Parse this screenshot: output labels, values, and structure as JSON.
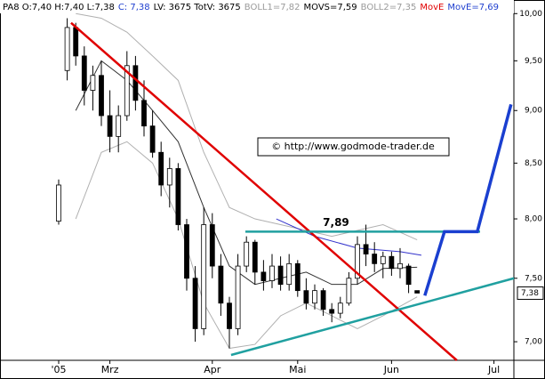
{
  "chart_data": {
    "type": "candlestick",
    "header": [
      {
        "text": "PA8 O:7,40 H:7,40 L:7,38",
        "color": "#000000"
      },
      {
        "text": "C: 7,38",
        "color": "#1f3fcf"
      },
      {
        "text": "LV: 3675 TotV: 3675",
        "color": "#000000"
      },
      {
        "text": "BOLL1=7,82",
        "color": "#9a9a9a"
      },
      {
        "text": "MOVS=7,59",
        "color": "#000000"
      },
      {
        "text": "BOLL2=7,35",
        "color": "#9a9a9a"
      },
      {
        "text": "MovE",
        "color": "#e00000"
      },
      {
        "text": "MovE=7,69",
        "color": "#1f3fcf"
      }
    ],
    "copyright": "© http://www.godmode-trader.de",
    "annotation": {
      "text": "7,89",
      "x": 65,
      "y": 7.89
    },
    "last_price": {
      "value": 7.38,
      "label": "7,38"
    },
    "log_scale": true,
    "ylim": [
      6.86,
      10.1
    ],
    "yticks": [
      {
        "value": 7,
        "label": "7,00"
      },
      {
        "value": 7.5,
        "label": "7,50"
      },
      {
        "value": 8,
        "label": "8,00"
      },
      {
        "value": 8.5,
        "label": "8,50"
      },
      {
        "value": 9,
        "label": "9,00"
      },
      {
        "value": 9.5,
        "label": "9,50"
      },
      {
        "value": 10,
        "label": "10,00"
      }
    ],
    "xlim": [
      -13.75,
      106.67
    ],
    "xticks": [
      {
        "value": 0,
        "label": "'05"
      },
      {
        "value": 12,
        "label": "Mrz"
      },
      {
        "value": 36,
        "label": "Apr"
      },
      {
        "value": 56,
        "label": "Mai"
      },
      {
        "value": 78,
        "label": "Jun"
      },
      {
        "value": 102,
        "label": "Jul"
      }
    ],
    "candles": {
      "x": [
        0,
        2,
        4,
        6,
        8,
        10,
        12,
        14,
        16,
        18,
        20,
        22,
        24,
        26,
        28,
        30,
        32,
        34,
        36,
        38,
        40,
        42,
        44,
        46,
        48,
        50,
        52,
        54,
        56,
        58,
        60,
        62,
        64,
        66,
        68,
        70,
        72,
        74,
        76,
        78,
        80,
        82,
        84
      ],
      "open": [
        7.98,
        9.4,
        9.85,
        9.55,
        9.2,
        9.35,
        8.95,
        8.75,
        8.95,
        9.45,
        9.1,
        8.85,
        8.6,
        8.3,
        8.45,
        7.95,
        7.5,
        7.1,
        7.95,
        7.6,
        7.3,
        7.1,
        7.6,
        7.8,
        7.55,
        7.48,
        7.6,
        7.45,
        7.62,
        7.4,
        7.3,
        7.4,
        7.25,
        7.22,
        7.3,
        7.5,
        7.78,
        7.7,
        7.62,
        7.68,
        7.58,
        7.6,
        7.4
      ],
      "high": [
        8.35,
        9.95,
        9.9,
        9.65,
        9.45,
        9.5,
        9.2,
        9.05,
        9.6,
        9.55,
        9.3,
        9.0,
        8.7,
        8.55,
        8.5,
        8.0,
        7.6,
        8.1,
        8.05,
        7.7,
        7.35,
        7.7,
        7.85,
        7.82,
        7.65,
        7.7,
        7.68,
        7.7,
        7.65,
        7.5,
        7.45,
        7.42,
        7.3,
        7.35,
        7.55,
        7.85,
        7.95,
        7.8,
        7.72,
        7.72,
        7.75,
        7.62,
        7.4
      ],
      "low": [
        7.95,
        9.3,
        9.45,
        9.05,
        9.0,
        8.85,
        8.6,
        8.6,
        8.9,
        9.0,
        8.75,
        8.55,
        8.2,
        8.1,
        7.9,
        7.4,
        7.0,
        7.05,
        7.5,
        7.2,
        6.95,
        7.05,
        7.55,
        7.45,
        7.4,
        7.42,
        7.4,
        7.4,
        7.35,
        7.25,
        7.25,
        7.2,
        7.15,
        7.18,
        7.28,
        7.45,
        7.6,
        7.55,
        7.5,
        7.52,
        7.5,
        7.38,
        7.38
      ],
      "close": [
        8.3,
        9.85,
        9.55,
        9.2,
        9.35,
        8.95,
        8.75,
        8.95,
        9.45,
        9.1,
        8.85,
        8.6,
        8.3,
        8.45,
        7.95,
        7.5,
        7.1,
        7.95,
        7.6,
        7.3,
        7.1,
        7.6,
        7.8,
        7.55,
        7.48,
        7.6,
        7.45,
        7.62,
        7.4,
        7.3,
        7.4,
        7.25,
        7.22,
        7.3,
        7.5,
        7.78,
        7.7,
        7.62,
        7.68,
        7.58,
        7.62,
        7.45,
        7.38
      ]
    },
    "series": [
      {
        "name": "BOLL1",
        "color": "#b0b0b0",
        "width": 1,
        "x": [
          4,
          10,
          16,
          22,
          28,
          34,
          40,
          46,
          52,
          58,
          64,
          70,
          76,
          84
        ],
        "values": [
          10.0,
          9.95,
          9.8,
          9.55,
          9.3,
          8.6,
          8.1,
          8.0,
          7.95,
          7.9,
          7.85,
          7.9,
          7.95,
          7.82
        ]
      },
      {
        "name": "BOLL2",
        "color": "#b0b0b0",
        "width": 1,
        "x": [
          4,
          10,
          16,
          22,
          28,
          34,
          40,
          46,
          52,
          58,
          64,
          70,
          76,
          84
        ],
        "values": [
          8.0,
          8.6,
          8.7,
          8.5,
          8.0,
          7.3,
          6.95,
          6.98,
          7.2,
          7.3,
          7.2,
          7.1,
          7.2,
          7.35
        ]
      },
      {
        "name": "MOVS",
        "color": "#333333",
        "width": 1,
        "x": [
          4,
          10,
          16,
          22,
          28,
          34,
          40,
          46,
          52,
          58,
          64,
          70,
          76,
          84
        ],
        "values": [
          9.0,
          9.5,
          9.3,
          9.0,
          8.7,
          8.1,
          7.6,
          7.45,
          7.5,
          7.55,
          7.45,
          7.45,
          7.58,
          7.59
        ]
      },
      {
        "name": "MovE",
        "color": "#3333cc",
        "width": 1,
        "x": [
          51,
          60,
          70,
          80,
          85
        ],
        "values": [
          8.0,
          7.85,
          7.75,
          7.72,
          7.69
        ]
      },
      {
        "name": "Resistance",
        "color": "#e00000",
        "width": 2.5,
        "x": [
          2.9,
          93.3
        ],
        "values": [
          9.9,
          6.86
        ]
      },
      {
        "name": "Support",
        "color": "#20a0a0",
        "width": 2.5,
        "x": [
          40.4,
          106.7
        ],
        "values": [
          6.9,
          7.5
        ]
      },
      {
        "name": "Level",
        "color": "#20a0a0",
        "width": 2.5,
        "x": [
          43.75,
          98.75
        ],
        "values": [
          7.89,
          7.89
        ]
      },
      {
        "name": "Projection",
        "color": "#1a3fd0",
        "width": 3.5,
        "x": [
          85.8,
          90.4,
          98.1,
          106
        ],
        "values": [
          7.36,
          7.89,
          7.89,
          9.06
        ]
      }
    ]
  }
}
